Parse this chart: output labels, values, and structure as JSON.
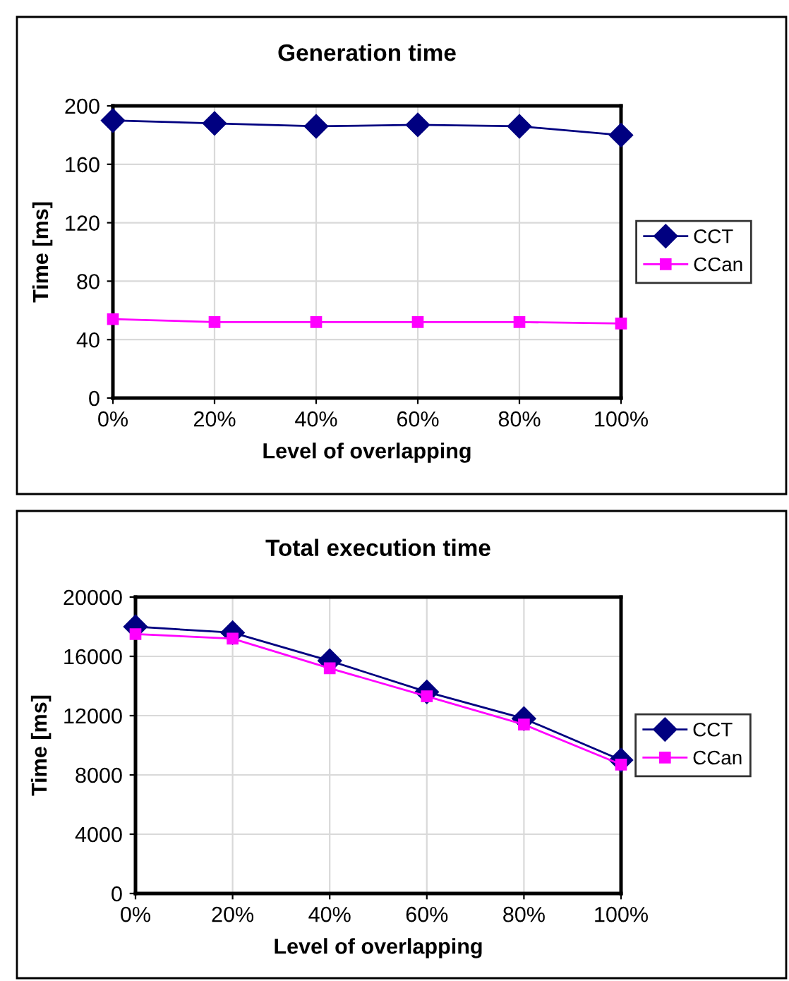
{
  "chart_data": [
    {
      "type": "line",
      "title": "Generation time",
      "xlabel": "Level of overlapping",
      "ylabel": "Time [ms]",
      "categories": [
        "0%",
        "20%",
        "40%",
        "60%",
        "80%",
        "100%"
      ],
      "series": [
        {
          "name": "CCT",
          "color": "#000080",
          "marker": "diamond",
          "values": [
            190,
            188,
            186,
            187,
            186,
            180
          ]
        },
        {
          "name": "CCan",
          "color": "#ff00ff",
          "marker": "square",
          "values": [
            54,
            52,
            52,
            52,
            52,
            51
          ]
        }
      ],
      "ylim": [
        0,
        200
      ],
      "yticks": [
        0,
        40,
        80,
        120,
        160,
        200
      ],
      "grid": true,
      "legend": "right",
      "line_style": "solid"
    },
    {
      "type": "line",
      "title": "Total execution time",
      "xlabel": "Level of overlapping",
      "ylabel": "Time [ms]",
      "categories": [
        "0%",
        "20%",
        "40%",
        "60%",
        "80%",
        "100%"
      ],
      "series": [
        {
          "name": "CCT",
          "color": "#000080",
          "marker": "diamond",
          "values": [
            18000,
            17600,
            15700,
            13600,
            11800,
            9000
          ]
        },
        {
          "name": "CCan",
          "color": "#ff00ff",
          "marker": "square",
          "values": [
            17500,
            17200,
            15200,
            13300,
            11400,
            8700
          ]
        }
      ],
      "ylim": [
        0,
        20000
      ],
      "yticks": [
        0,
        4000,
        8000,
        12000,
        16000,
        20000
      ],
      "grid": true,
      "legend": "right",
      "line_style": "solid"
    }
  ]
}
